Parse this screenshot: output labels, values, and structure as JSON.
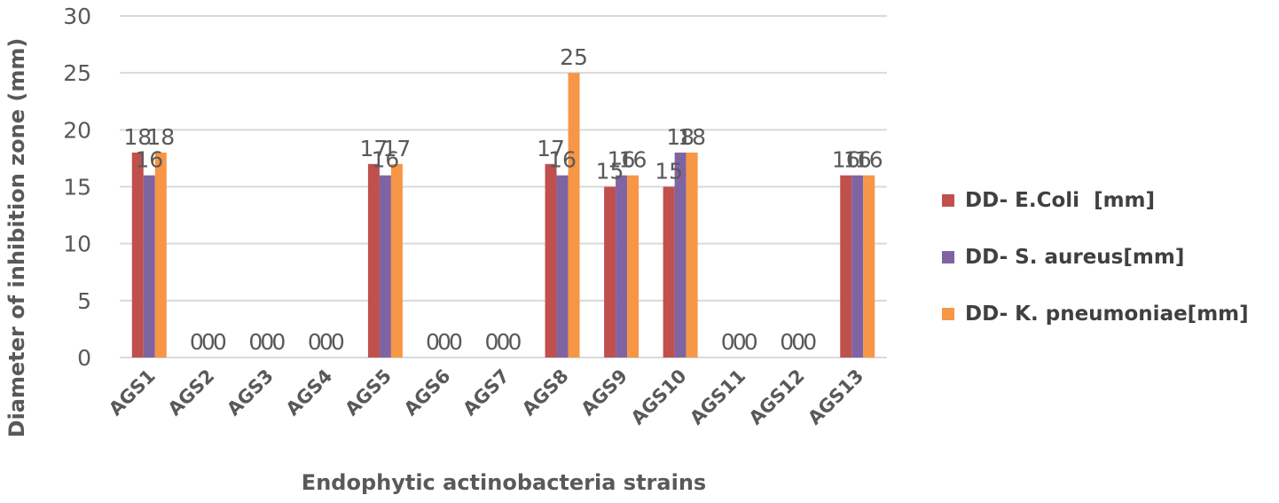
{
  "chart_data": {
    "type": "bar",
    "title": "",
    "xlabel": "Endophytic actinobacteria strains",
    "ylabel": "Diameter of inhibition zone (mm)",
    "ylim": [
      0,
      30
    ],
    "yticks": [
      0,
      5,
      10,
      15,
      20,
      25,
      30
    ],
    "grid": true,
    "legend_position": "right",
    "categories": [
      "AGS1",
      "AGS2",
      "AGS3",
      "AGS4",
      "AGS5",
      "AGS6",
      "AGS7",
      "AGS8",
      "AGS9",
      "AGS10",
      "AGS11",
      "AGS12",
      "AGS13"
    ],
    "series": [
      {
        "name": "DD- E.Coli  [mm]",
        "color": "#C0504D",
        "values": [
          18,
          0,
          0,
          0,
          17,
          0,
          0,
          17,
          15,
          15,
          0,
          0,
          16
        ]
      },
      {
        "name": "DD- S. aureus[mm]",
        "color": "#8064A2",
        "values": [
          16,
          0,
          0,
          0,
          16,
          0,
          0,
          16,
          16,
          18,
          0,
          0,
          16
        ]
      },
      {
        "name": "DD- K. pneumoniae[mm]",
        "color": "#F79646",
        "values": [
          18,
          0,
          0,
          0,
          17,
          0,
          0,
          25,
          16,
          18,
          0,
          0,
          16
        ]
      }
    ]
  }
}
